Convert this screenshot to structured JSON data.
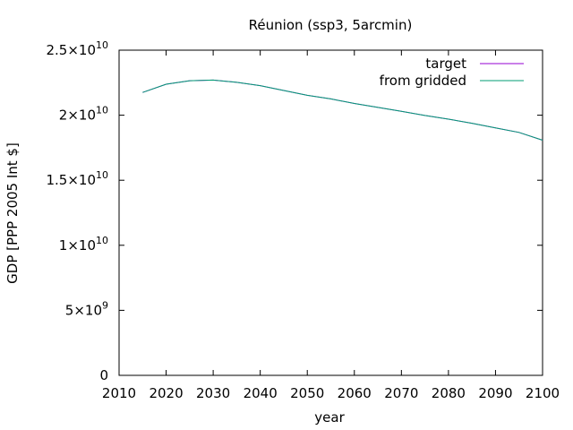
{
  "chart_data": {
    "type": "line",
    "title": "Réunion (ssp3, 5arcmin)",
    "xlabel": "year",
    "ylabel": "GDP [PPP 2005 Int $]",
    "xlim": [
      2010,
      2100
    ],
    "ylim": [
      0,
      25000000000
    ],
    "x_ticks": [
      2010,
      2020,
      2030,
      2040,
      2050,
      2060,
      2070,
      2080,
      2090,
      2100
    ],
    "y_ticks": [
      {
        "value": 0,
        "mantissa": "0",
        "exponent": ""
      },
      {
        "value": 5000000000,
        "mantissa": "5×10",
        "exponent": "9"
      },
      {
        "value": 10000000000,
        "mantissa": "1×10",
        "exponent": "10"
      },
      {
        "value": 15000000000,
        "mantissa": "1.5×10",
        "exponent": "10"
      },
      {
        "value": 20000000000,
        "mantissa": "2×10",
        "exponent": "10"
      },
      {
        "value": 25000000000,
        "mantissa": "2.5×10",
        "exponent": "10"
      }
    ],
    "grid": false,
    "legend_position": "top-right",
    "series": [
      {
        "name": "target",
        "color": "#9400d3",
        "x": [
          2015,
          2020,
          2025,
          2030,
          2035,
          2040,
          2045,
          2050,
          2055,
          2060,
          2065,
          2070,
          2075,
          2080,
          2085,
          2090,
          2095,
          2100
        ],
        "y": [
          21750000000,
          22380000000,
          22650000000,
          22700000000,
          22530000000,
          22270000000,
          21900000000,
          21530000000,
          21250000000,
          20900000000,
          20600000000,
          20300000000,
          19980000000,
          19700000000,
          19380000000,
          19020000000,
          18680000000,
          18080000000
        ]
      },
      {
        "name": "from gridded",
        "color": "#009e73",
        "x": [
          2015,
          2020,
          2025,
          2030,
          2035,
          2040,
          2045,
          2050,
          2055,
          2060,
          2065,
          2070,
          2075,
          2080,
          2085,
          2090,
          2095,
          2100
        ],
        "y": [
          21750000000,
          22380000000,
          22650000000,
          22700000000,
          22530000000,
          22270000000,
          21900000000,
          21530000000,
          21250000000,
          20900000000,
          20600000000,
          20300000000,
          19980000000,
          19700000000,
          19380000000,
          19020000000,
          18680000000,
          18080000000
        ]
      }
    ]
  }
}
